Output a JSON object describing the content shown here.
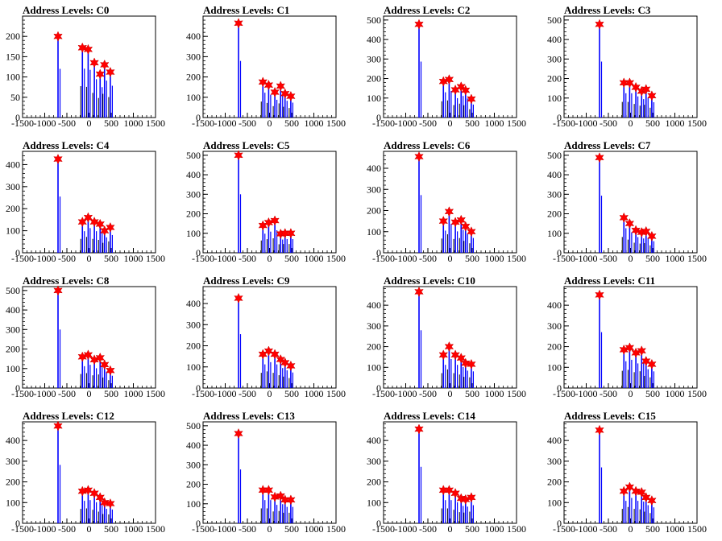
{
  "chart_data": [
    {
      "type": "histogram",
      "title": "Address Levels: C0",
      "xlim": [
        -1500,
        1500
      ],
      "ylim": [
        0,
        250
      ],
      "yticks": [
        0,
        50,
        100,
        150,
        200
      ],
      "xticks": [
        -1500,
        -1000,
        -500,
        0,
        500,
        1000,
        1500
      ],
      "peaks": [
        [
          -700,
          200
        ],
        [
          -150,
          172
        ],
        [
          -20,
          168
        ],
        [
          120,
          135
        ],
        [
          250,
          107
        ],
        [
          350,
          130
        ],
        [
          480,
          112
        ]
      ]
    },
    {
      "type": "histogram",
      "title": "Address Levels: C1",
      "xlim": [
        -1500,
        1500
      ],
      "ylim": [
        0,
        500
      ],
      "yticks": [
        0,
        100,
        200,
        300,
        400
      ],
      "xticks": [
        -1500,
        -1000,
        -500,
        0,
        500,
        1000,
        1500
      ],
      "peaks": [
        [
          -700,
          465
        ],
        [
          -150,
          175
        ],
        [
          -20,
          160
        ],
        [
          120,
          125
        ],
        [
          250,
          155
        ],
        [
          350,
          118
        ],
        [
          480,
          105
        ]
      ]
    },
    {
      "type": "histogram",
      "title": "Address Levels: C2",
      "xlim": [
        -1500,
        1500
      ],
      "ylim": [
        0,
        520
      ],
      "yticks": [
        0,
        100,
        200,
        300,
        400,
        500
      ],
      "xticks": [
        -1500,
        -1000,
        -500,
        0,
        500,
        1000,
        1500
      ],
      "peaks": [
        [
          -700,
          478
        ],
        [
          -150,
          185
        ],
        [
          -20,
          195
        ],
        [
          120,
          142
        ],
        [
          250,
          158
        ],
        [
          350,
          140
        ],
        [
          480,
          95
        ]
      ]
    },
    {
      "type": "histogram",
      "title": "Address Levels: C3",
      "xlim": [
        -1500,
        1500
      ],
      "ylim": [
        0,
        520
      ],
      "yticks": [
        0,
        100,
        200,
        300,
        400,
        500
      ],
      "xticks": [
        -1500,
        -1000,
        -500,
        0,
        500,
        1000,
        1500
      ],
      "peaks": [
        [
          -700,
          478
        ],
        [
          -150,
          178
        ],
        [
          -20,
          178
        ],
        [
          120,
          155
        ],
        [
          250,
          135
        ],
        [
          350,
          145
        ],
        [
          480,
          112
        ]
      ]
    },
    {
      "type": "histogram",
      "title": "Address Levels: C4",
      "xlim": [
        -1500,
        1500
      ],
      "ylim": [
        0,
        460
      ],
      "yticks": [
        0,
        100,
        200,
        300,
        400
      ],
      "xticks": [
        -1500,
        -1000,
        -500,
        0,
        500,
        1000,
        1500
      ],
      "peaks": [
        [
          -700,
          425
        ],
        [
          -150,
          140
        ],
        [
          -20,
          160
        ],
        [
          120,
          140
        ],
        [
          250,
          130
        ],
        [
          350,
          100
        ],
        [
          480,
          115
        ]
      ]
    },
    {
      "type": "histogram",
      "title": "Address Levels: C5",
      "xlim": [
        -1500,
        1500
      ],
      "ylim": [
        0,
        520
      ],
      "yticks": [
        0,
        100,
        200,
        300,
        400,
        500
      ],
      "xticks": [
        -1500,
        -1000,
        -500,
        0,
        500,
        1000,
        1500
      ],
      "peaks": [
        [
          -700,
          500
        ],
        [
          -150,
          140
        ],
        [
          -20,
          155
        ],
        [
          120,
          165
        ],
        [
          250,
          97
        ],
        [
          350,
          100
        ],
        [
          480,
          100
        ]
      ]
    },
    {
      "type": "histogram",
      "title": "Address Levels: C6",
      "xlim": [
        -1500,
        1500
      ],
      "ylim": [
        0,
        480
      ],
      "yticks": [
        0,
        100,
        200,
        300,
        400
      ],
      "xticks": [
        -1500,
        -1000,
        -500,
        0,
        500,
        1000,
        1500
      ],
      "peaks": [
        [
          -700,
          455
        ],
        [
          -150,
          150
        ],
        [
          -20,
          195
        ],
        [
          120,
          145
        ],
        [
          250,
          155
        ],
        [
          350,
          125
        ],
        [
          480,
          100
        ]
      ]
    },
    {
      "type": "histogram",
      "title": "Address Levels: C7",
      "xlim": [
        -1500,
        1500
      ],
      "ylim": [
        0,
        520
      ],
      "yticks": [
        0,
        100,
        200,
        300,
        400,
        500
      ],
      "xticks": [
        -1500,
        -1000,
        -500,
        0,
        500,
        1000,
        1500
      ],
      "peaks": [
        [
          -700,
          488
        ],
        [
          -150,
          180
        ],
        [
          -20,
          150
        ],
        [
          120,
          115
        ],
        [
          250,
          105
        ],
        [
          350,
          110
        ],
        [
          480,
          85
        ]
      ]
    },
    {
      "type": "histogram",
      "title": "Address Levels: C8",
      "xlim": [
        -1500,
        1500
      ],
      "ylim": [
        0,
        520
      ],
      "yticks": [
        0,
        100,
        200,
        300,
        400,
        500
      ],
      "xticks": [
        -1500,
        -1000,
        -500,
        0,
        500,
        1000,
        1500
      ],
      "peaks": [
        [
          -700,
          500
        ],
        [
          -150,
          160
        ],
        [
          -20,
          170
        ],
        [
          120,
          145
        ],
        [
          250,
          155
        ],
        [
          350,
          120
        ],
        [
          480,
          90
        ]
      ]
    },
    {
      "type": "histogram",
      "title": "Address Levels: C9",
      "xlim": [
        -1500,
        1500
      ],
      "ylim": [
        0,
        480
      ],
      "yticks": [
        0,
        100,
        200,
        300,
        400
      ],
      "xticks": [
        -1500,
        -1000,
        -500,
        0,
        500,
        1000,
        1500
      ],
      "peaks": [
        [
          -700,
          425
        ],
        [
          -150,
          160
        ],
        [
          -20,
          175
        ],
        [
          120,
          160
        ],
        [
          250,
          135
        ],
        [
          350,
          120
        ],
        [
          480,
          105
        ]
      ]
    },
    {
      "type": "histogram",
      "title": "Address Levels: C10",
      "xlim": [
        -1500,
        1500
      ],
      "ylim": [
        0,
        490
      ],
      "yticks": [
        0,
        100,
        200,
        300,
        400
      ],
      "xticks": [
        -1500,
        -1000,
        -500,
        0,
        500,
        1000,
        1500
      ],
      "peaks": [
        [
          -700,
          465
        ],
        [
          -150,
          160
        ],
        [
          -20,
          200
        ],
        [
          120,
          160
        ],
        [
          250,
          145
        ],
        [
          350,
          120
        ],
        [
          480,
          115
        ]
      ]
    },
    {
      "type": "histogram",
      "title": "Address Levels: C11",
      "xlim": [
        -1500,
        1500
      ],
      "ylim": [
        0,
        490
      ],
      "yticks": [
        0,
        100,
        200,
        300,
        400
      ],
      "xticks": [
        -1500,
        -1000,
        -500,
        0,
        500,
        1000,
        1500
      ],
      "peaks": [
        [
          -700,
          450
        ],
        [
          -150,
          185
        ],
        [
          -20,
          195
        ],
        [
          120,
          170
        ],
        [
          250,
          180
        ],
        [
          350,
          130
        ],
        [
          480,
          115
        ]
      ]
    },
    {
      "type": "histogram",
      "title": "Address Levels: C12",
      "xlim": [
        -1500,
        1500
      ],
      "ylim": [
        0,
        490
      ],
      "yticks": [
        0,
        100,
        200,
        300,
        400
      ],
      "xticks": [
        -1500,
        -1000,
        -500,
        0,
        500,
        1000,
        1500
      ],
      "peaks": [
        [
          -700,
          470
        ],
        [
          -150,
          155
        ],
        [
          -20,
          160
        ],
        [
          120,
          145
        ],
        [
          250,
          125
        ],
        [
          350,
          100
        ],
        [
          480,
          95
        ]
      ]
    },
    {
      "type": "histogram",
      "title": "Address Levels: C13",
      "xlim": [
        -1500,
        1500
      ],
      "ylim": [
        0,
        520
      ],
      "yticks": [
        0,
        100,
        200,
        300,
        400,
        500
      ],
      "xticks": [
        -1500,
        -1000,
        -500,
        0,
        500,
        1000,
        1500
      ],
      "peaks": [
        [
          -700,
          460
        ],
        [
          -150,
          170
        ],
        [
          -20,
          170
        ],
        [
          120,
          135
        ],
        [
          250,
          140
        ],
        [
          350,
          120
        ],
        [
          480,
          120
        ]
      ]
    },
    {
      "type": "histogram",
      "title": "Address Levels: C14",
      "xlim": [
        -1500,
        1500
      ],
      "ylim": [
        0,
        490
      ],
      "yticks": [
        0,
        100,
        200,
        300,
        400
      ],
      "xticks": [
        -1500,
        -1000,
        -500,
        0,
        500,
        1000,
        1500
      ],
      "peaks": [
        [
          -700,
          455
        ],
        [
          -150,
          160
        ],
        [
          -20,
          160
        ],
        [
          120,
          145
        ],
        [
          250,
          120
        ],
        [
          350,
          115
        ],
        [
          480,
          125
        ]
      ]
    },
    {
      "type": "histogram",
      "title": "Address Levels: C15",
      "xlim": [
        -1500,
        1500
      ],
      "ylim": [
        0,
        490
      ],
      "yticks": [
        0,
        100,
        200,
        300,
        400
      ],
      "xticks": [
        -1500,
        -1000,
        -500,
        0,
        500,
        1000,
        1500
      ],
      "peaks": [
        [
          -700,
          450
        ],
        [
          -150,
          155
        ],
        [
          -20,
          175
        ],
        [
          120,
          155
        ],
        [
          250,
          150
        ],
        [
          350,
          125
        ],
        [
          480,
          110
        ]
      ]
    }
  ],
  "colors": {
    "histogram": "#0000ff",
    "marker": "#ff0000",
    "axis": "#000000"
  }
}
